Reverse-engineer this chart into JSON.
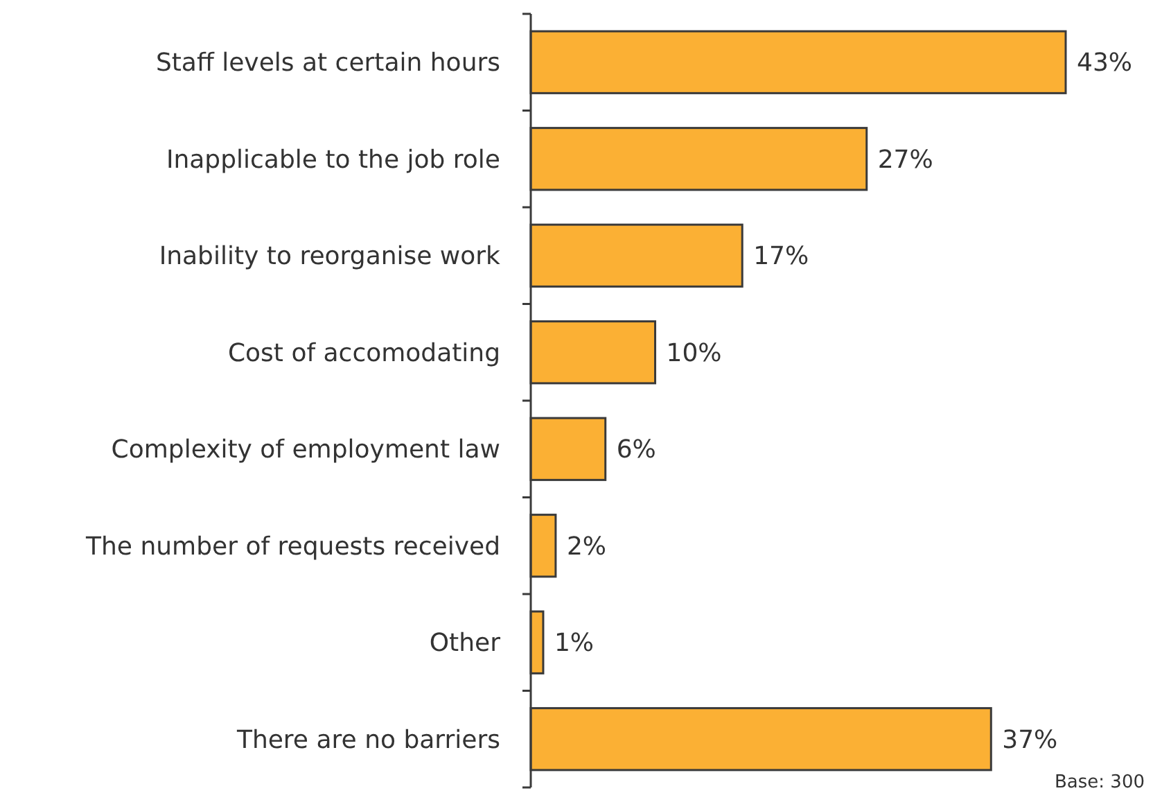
{
  "chart_data": {
    "type": "bar",
    "orientation": "horizontal",
    "categories": [
      "Staff levels at certain hours",
      "Inapplicable to the job role",
      "Inability to reorganise work",
      "Cost of accomodating",
      "Complexity of employment law",
      "The number of requests received",
      "Other",
      "There are no barriers"
    ],
    "values": [
      43,
      27,
      17,
      10,
      6,
      2,
      1,
      37
    ],
    "value_labels": [
      "43%",
      "27%",
      "17%",
      "10%",
      "6%",
      "2%",
      "1%",
      "37%"
    ],
    "color": "#fbb034",
    "annotations": [
      "Base: 300"
    ]
  }
}
